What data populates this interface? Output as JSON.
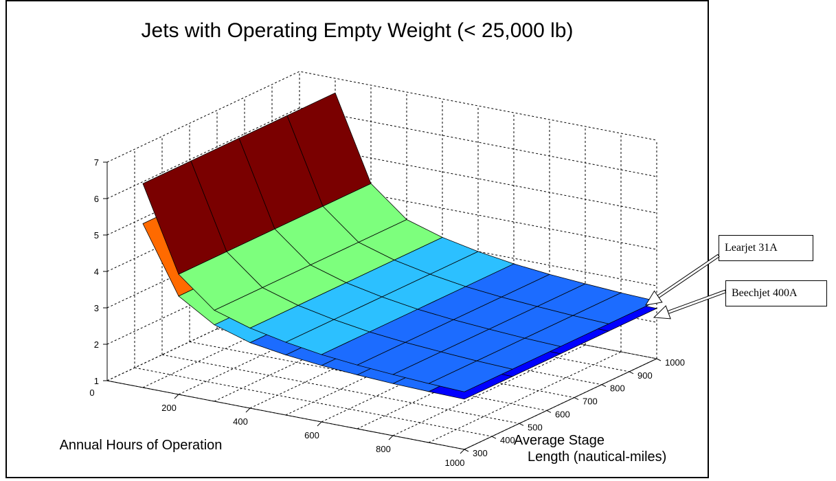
{
  "chart_data": {
    "type": "surface",
    "title": "Jets with Operating Empty Weight (< 25,000 lb)",
    "xlabel": "Annual Hours of Operation",
    "ylabel": "Average Stage\nLength (nautical-miles)",
    "zlabel": "",
    "xlim": [
      0,
      1000
    ],
    "ylim": [
      300,
      1000
    ],
    "zlim": [
      1,
      7
    ],
    "x_ticks": [
      "200",
      "400",
      "600",
      "800",
      "1000"
    ],
    "y_ticks": [
      "300",
      "400",
      "500",
      "600",
      "700",
      "800",
      "900",
      "1000"
    ],
    "z_ticks": [
      "1",
      "2",
      "3",
      "4",
      "5",
      "6",
      "7"
    ],
    "x_origin_label": "0",
    "grid": true,
    "x": [
      100,
      200,
      300,
      400,
      500,
      600,
      700,
      800,
      900,
      1000
    ],
    "series": [
      {
        "name": "Learjet 31A",
        "stage_length": [
          300,
          1000
        ],
        "values": [
          6.6,
          4.3,
          3.5,
          3.2,
          3.0,
          2.85,
          2.75,
          2.68,
          2.62,
          2.58
        ]
      },
      {
        "name": "Beechjet 400A",
        "stage_length": [
          300,
          1000
        ],
        "values": [
          5.5,
          3.7,
          3.1,
          2.8,
          2.65,
          2.55,
          2.48,
          2.43,
          2.4,
          2.38
        ]
      }
    ],
    "colormap": [
      "#001a8c",
      "#0000ff",
      "#1c6cff",
      "#2cc0ff",
      "#7dff7d",
      "#ff6a00",
      "#7a0000"
    ]
  },
  "callouts": [
    {
      "label": "Learjet 31A"
    },
    {
      "label": "Beechjet 400A"
    }
  ]
}
